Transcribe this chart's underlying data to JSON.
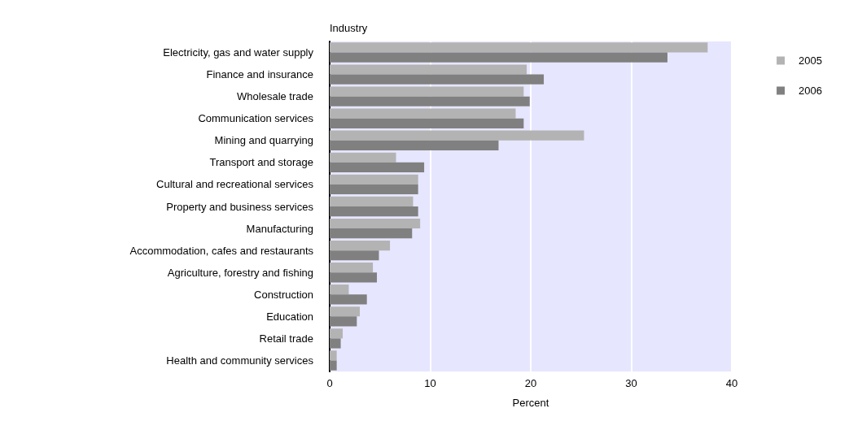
{
  "chart_data": {
    "type": "bar",
    "orientation": "horizontal",
    "ylabel": "Industry",
    "xlabel": "Percent",
    "categories": [
      "Electricity, gas and water supply",
      "Finance and insurance",
      "Wholesale trade",
      "Communication services",
      "Mining and quarrying",
      "Transport and storage",
      "Cultural and recreational services",
      "Property and business services",
      "Manufacturing",
      "Accommodation, cafes and restaurants",
      "Agriculture, forestry and fishing",
      "Construction",
      "Education",
      "Retail trade",
      "Health and community services"
    ],
    "series": [
      {
        "name": "2005",
        "color": "#b3b3b3",
        "values": [
          37.6,
          19.6,
          19.3,
          18.5,
          25.3,
          6.6,
          8.8,
          8.3,
          9.0,
          6.0,
          4.3,
          1.9,
          3.0,
          1.3,
          0.7
        ]
      },
      {
        "name": "2006",
        "color": "#808080",
        "values": [
          33.6,
          21.3,
          19.9,
          19.3,
          16.8,
          9.4,
          8.8,
          8.8,
          8.2,
          4.9,
          4.7,
          3.7,
          2.7,
          1.1,
          0.7
        ]
      }
    ],
    "xlim": [
      0,
      40
    ],
    "xticks": [
      0,
      10,
      20,
      30,
      40
    ],
    "grid": "x",
    "legend": "top right"
  }
}
